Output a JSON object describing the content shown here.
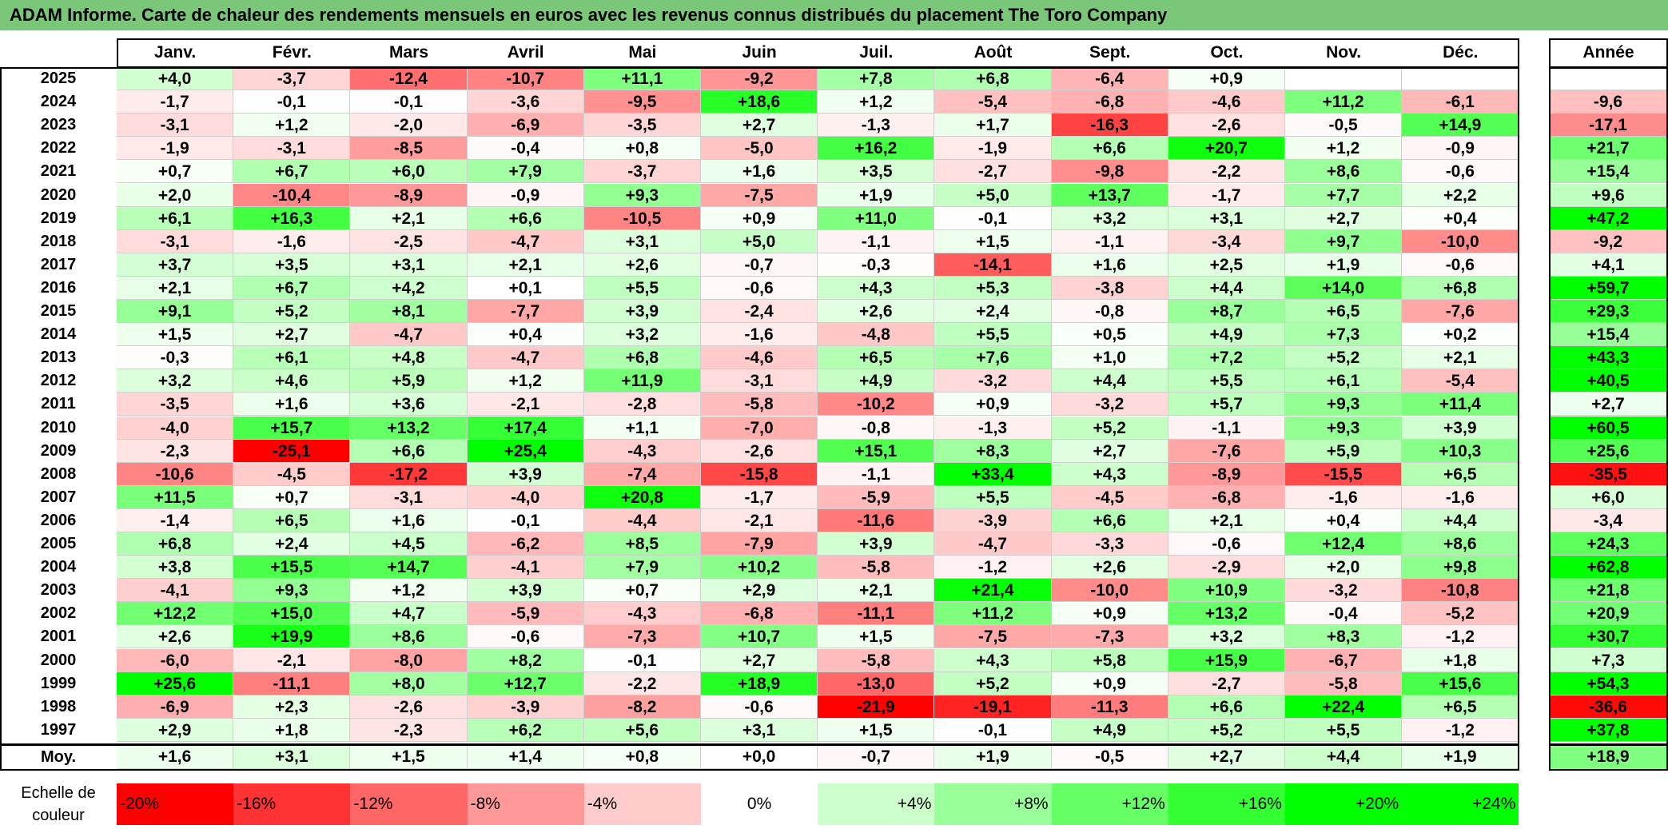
{
  "title": "ADAM Informe. Carte de chaleur des rendements mensuels en euros avec les revenus connus distribués du placement The Toro Company",
  "chart_data": {
    "type": "heatmap",
    "months": [
      "Janv.",
      "Févr.",
      "Mars",
      "Avril",
      "Mai",
      "Juin",
      "Juil.",
      "Août",
      "Sept.",
      "Oct.",
      "Nov.",
      "Déc."
    ],
    "year_header": "Année",
    "avg_label": "Moy.",
    "rows": [
      {
        "year": "2025",
        "values": [
          "+4,0",
          "-3,7",
          "-12,4",
          "-10,7",
          "+11,1",
          "-9,2",
          "+7,8",
          "+6,8",
          "-6,4",
          "+0,9",
          "",
          ""
        ],
        "annual": ""
      },
      {
        "year": "2024",
        "values": [
          "-1,7",
          "-0,1",
          "-0,1",
          "-3,6",
          "-9,5",
          "+18,6",
          "+1,2",
          "-5,4",
          "-6,8",
          "-4,6",
          "+11,2",
          "-6,1"
        ],
        "annual": "-9,6"
      },
      {
        "year": "2023",
        "values": [
          "-3,1",
          "+1,2",
          "-2,0",
          "-6,9",
          "-3,5",
          "+2,7",
          "-1,3",
          "+1,7",
          "-16,3",
          "-2,6",
          "-0,5",
          "+14,9"
        ],
        "annual": "-17,1"
      },
      {
        "year": "2022",
        "values": [
          "-1,9",
          "-3,1",
          "-8,5",
          "-0,4",
          "+0,8",
          "-5,0",
          "+16,2",
          "-1,9",
          "+6,6",
          "+20,7",
          "+1,2",
          "-0,9"
        ],
        "annual": "+21,7"
      },
      {
        "year": "2021",
        "values": [
          "+0,7",
          "+6,7",
          "+6,0",
          "+7,9",
          "-3,7",
          "+1,6",
          "+3,5",
          "-2,7",
          "-9,8",
          "-2,2",
          "+8,6",
          "-0,6"
        ],
        "annual": "+15,4"
      },
      {
        "year": "2020",
        "values": [
          "+2,0",
          "-10,4",
          "-8,9",
          "-0,9",
          "+9,3",
          "-7,5",
          "+1,9",
          "+5,0",
          "+13,7",
          "-1,7",
          "+7,7",
          "+2,2"
        ],
        "annual": "+9,6"
      },
      {
        "year": "2019",
        "values": [
          "+6,1",
          "+16,3",
          "+2,1",
          "+6,6",
          "-10,5",
          "+0,9",
          "+11,0",
          "-0,1",
          "+3,2",
          "+3,1",
          "+2,7",
          "+0,4"
        ],
        "annual": "+47,2"
      },
      {
        "year": "2018",
        "values": [
          "-3,1",
          "-1,6",
          "-2,5",
          "-4,7",
          "+3,1",
          "+5,0",
          "-1,1",
          "+1,5",
          "-1,1",
          "-3,4",
          "+9,7",
          "-10,0"
        ],
        "annual": "-9,2"
      },
      {
        "year": "2017",
        "values": [
          "+3,7",
          "+3,5",
          "+3,1",
          "+2,1",
          "+2,6",
          "-0,7",
          "-0,3",
          "-14,1",
          "+1,6",
          "+2,5",
          "+1,9",
          "-0,6"
        ],
        "annual": "+4,1"
      },
      {
        "year": "2016",
        "values": [
          "+2,1",
          "+6,7",
          "+4,2",
          "+0,1",
          "+5,5",
          "-0,6",
          "+4,3",
          "+5,3",
          "-3,8",
          "+4,4",
          "+14,0",
          "+6,8"
        ],
        "annual": "+59,7"
      },
      {
        "year": "2015",
        "values": [
          "+9,1",
          "+5,2",
          "+8,1",
          "-7,7",
          "+3,9",
          "-2,4",
          "+2,6",
          "+2,4",
          "-0,8",
          "+8,7",
          "+6,5",
          "-7,6"
        ],
        "annual": "+29,3"
      },
      {
        "year": "2014",
        "values": [
          "+1,5",
          "+2,7",
          "-4,7",
          "+0,4",
          "+3,2",
          "-1,6",
          "-4,8",
          "+5,5",
          "+0,5",
          "+4,9",
          "+7,3",
          "+0,2"
        ],
        "annual": "+15,4"
      },
      {
        "year": "2013",
        "values": [
          "-0,3",
          "+6,1",
          "+4,8",
          "-4,7",
          "+6,8",
          "-4,6",
          "+6,5",
          "+7,6",
          "+1,0",
          "+7,2",
          "+5,2",
          "+2,1"
        ],
        "annual": "+43,3"
      },
      {
        "year": "2012",
        "values": [
          "+3,2",
          "+4,6",
          "+5,9",
          "+1,2",
          "+11,9",
          "-3,1",
          "+4,9",
          "-3,2",
          "+4,4",
          "+5,5",
          "+6,1",
          "-5,4"
        ],
        "annual": "+40,5"
      },
      {
        "year": "2011",
        "values": [
          "-3,5",
          "+1,6",
          "+3,6",
          "-2,1",
          "-2,8",
          "-5,8",
          "-10,2",
          "+0,9",
          "-3,2",
          "+5,7",
          "+9,3",
          "+11,4"
        ],
        "annual": "+2,7"
      },
      {
        "year": "2010",
        "values": [
          "-4,0",
          "+15,7",
          "+13,2",
          "+17,4",
          "+1,1",
          "-7,0",
          "-0,8",
          "-1,3",
          "+5,2",
          "-1,1",
          "+9,3",
          "+3,9"
        ],
        "annual": "+60,5"
      },
      {
        "year": "2009",
        "values": [
          "-2,3",
          "-25,1",
          "+6,6",
          "+25,4",
          "-4,3",
          "-2,6",
          "+15,1",
          "+8,3",
          "+2,7",
          "-7,6",
          "+5,9",
          "+10,3"
        ],
        "annual": "+25,6"
      },
      {
        "year": "2008",
        "values": [
          "-10,6",
          "-4,5",
          "-17,2",
          "+3,9",
          "-7,4",
          "-15,8",
          "-1,1",
          "+33,4",
          "+4,3",
          "-8,9",
          "-15,5",
          "+6,5"
        ],
        "annual": "-35,5"
      },
      {
        "year": "2007",
        "values": [
          "+11,5",
          "+0,7",
          "-3,1",
          "-4,0",
          "+20,8",
          "-1,7",
          "-5,9",
          "+5,5",
          "-4,5",
          "-6,8",
          "-1,6",
          "-1,6"
        ],
        "annual": "+6,0"
      },
      {
        "year": "2006",
        "values": [
          "-1,4",
          "+6,5",
          "+1,6",
          "-0,1",
          "-4,4",
          "-2,1",
          "-11,6",
          "-3,9",
          "+6,6",
          "+2,1",
          "+0,4",
          "+4,4"
        ],
        "annual": "-3,4"
      },
      {
        "year": "2005",
        "values": [
          "+6,8",
          "+2,4",
          "+4,5",
          "-6,2",
          "+8,5",
          "-7,9",
          "+3,9",
          "-4,7",
          "-3,3",
          "-0,6",
          "+12,4",
          "+8,6"
        ],
        "annual": "+24,3"
      },
      {
        "year": "2004",
        "values": [
          "+3,8",
          "+15,5",
          "+14,7",
          "-4,1",
          "+7,9",
          "+10,2",
          "-5,8",
          "-1,2",
          "+2,6",
          "-2,9",
          "+2,0",
          "+9,8"
        ],
        "annual": "+62,8"
      },
      {
        "year": "2003",
        "values": [
          "-4,1",
          "+9,3",
          "+1,2",
          "+3,9",
          "+0,7",
          "+2,9",
          "+2,1",
          "+21,4",
          "-10,0",
          "+10,9",
          "-3,2",
          "-10,8"
        ],
        "annual": "+21,8"
      },
      {
        "year": "2002",
        "values": [
          "+12,2",
          "+15,0",
          "+4,7",
          "-5,9",
          "-4,3",
          "-6,8",
          "-11,1",
          "+11,2",
          "+0,9",
          "+13,2",
          "-0,4",
          "-5,2"
        ],
        "annual": "+20,9"
      },
      {
        "year": "2001",
        "values": [
          "+2,6",
          "+19,9",
          "+8,6",
          "-0,6",
          "-7,3",
          "+10,7",
          "+1,5",
          "-7,5",
          "-7,3",
          "+3,2",
          "+8,3",
          "-1,2"
        ],
        "annual": "+30,7"
      },
      {
        "year": "2000",
        "values": [
          "-6,0",
          "-2,1",
          "-8,0",
          "+8,2",
          "-0,1",
          "+2,7",
          "-5,8",
          "+4,3",
          "+5,8",
          "+15,9",
          "-6,7",
          "+1,8"
        ],
        "annual": "+7,3"
      },
      {
        "year": "1999",
        "values": [
          "+25,6",
          "-11,1",
          "+8,0",
          "+12,7",
          "-2,2",
          "+18,9",
          "-13,0",
          "+5,2",
          "+0,9",
          "-2,7",
          "-5,8",
          "+15,6"
        ],
        "annual": "+54,3"
      },
      {
        "year": "1998",
        "values": [
          "-6,9",
          "+2,3",
          "-2,6",
          "-3,9",
          "-8,2",
          "-0,6",
          "-21,9",
          "-19,1",
          "-11,3",
          "+6,6",
          "+22,4",
          "+6,5"
        ],
        "annual": "-36,6"
      },
      {
        "year": "1997",
        "values": [
          "+2,9",
          "+1,8",
          "-2,3",
          "+6,2",
          "+5,6",
          "+3,1",
          "+1,5",
          "-0,1",
          "+4,9",
          "+5,2",
          "+5,5",
          "-1,2"
        ],
        "annual": "+37,8"
      }
    ],
    "averages": [
      "+1,6",
      "+3,1",
      "+1,5",
      "+1,4",
      "+0,8",
      "+0,0",
      "-0,7",
      "+1,9",
      "-0,5",
      "+2,7",
      "+4,4",
      "+1,9"
    ],
    "avg_annual": "+18,9",
    "scale_label": "Echelle de couleur",
    "scale": [
      "-20%",
      "-16%",
      "-12%",
      "-8%",
      "-4%",
      "0%",
      "+4%",
      "+8%",
      "+12%",
      "+16%",
      "+20%",
      "+24%"
    ],
    "colors": {
      "negative_max": "#ff0000",
      "neutral": "#ffffff",
      "positive_max": "#00ff00",
      "title_bg": "#7ac77a"
    }
  }
}
